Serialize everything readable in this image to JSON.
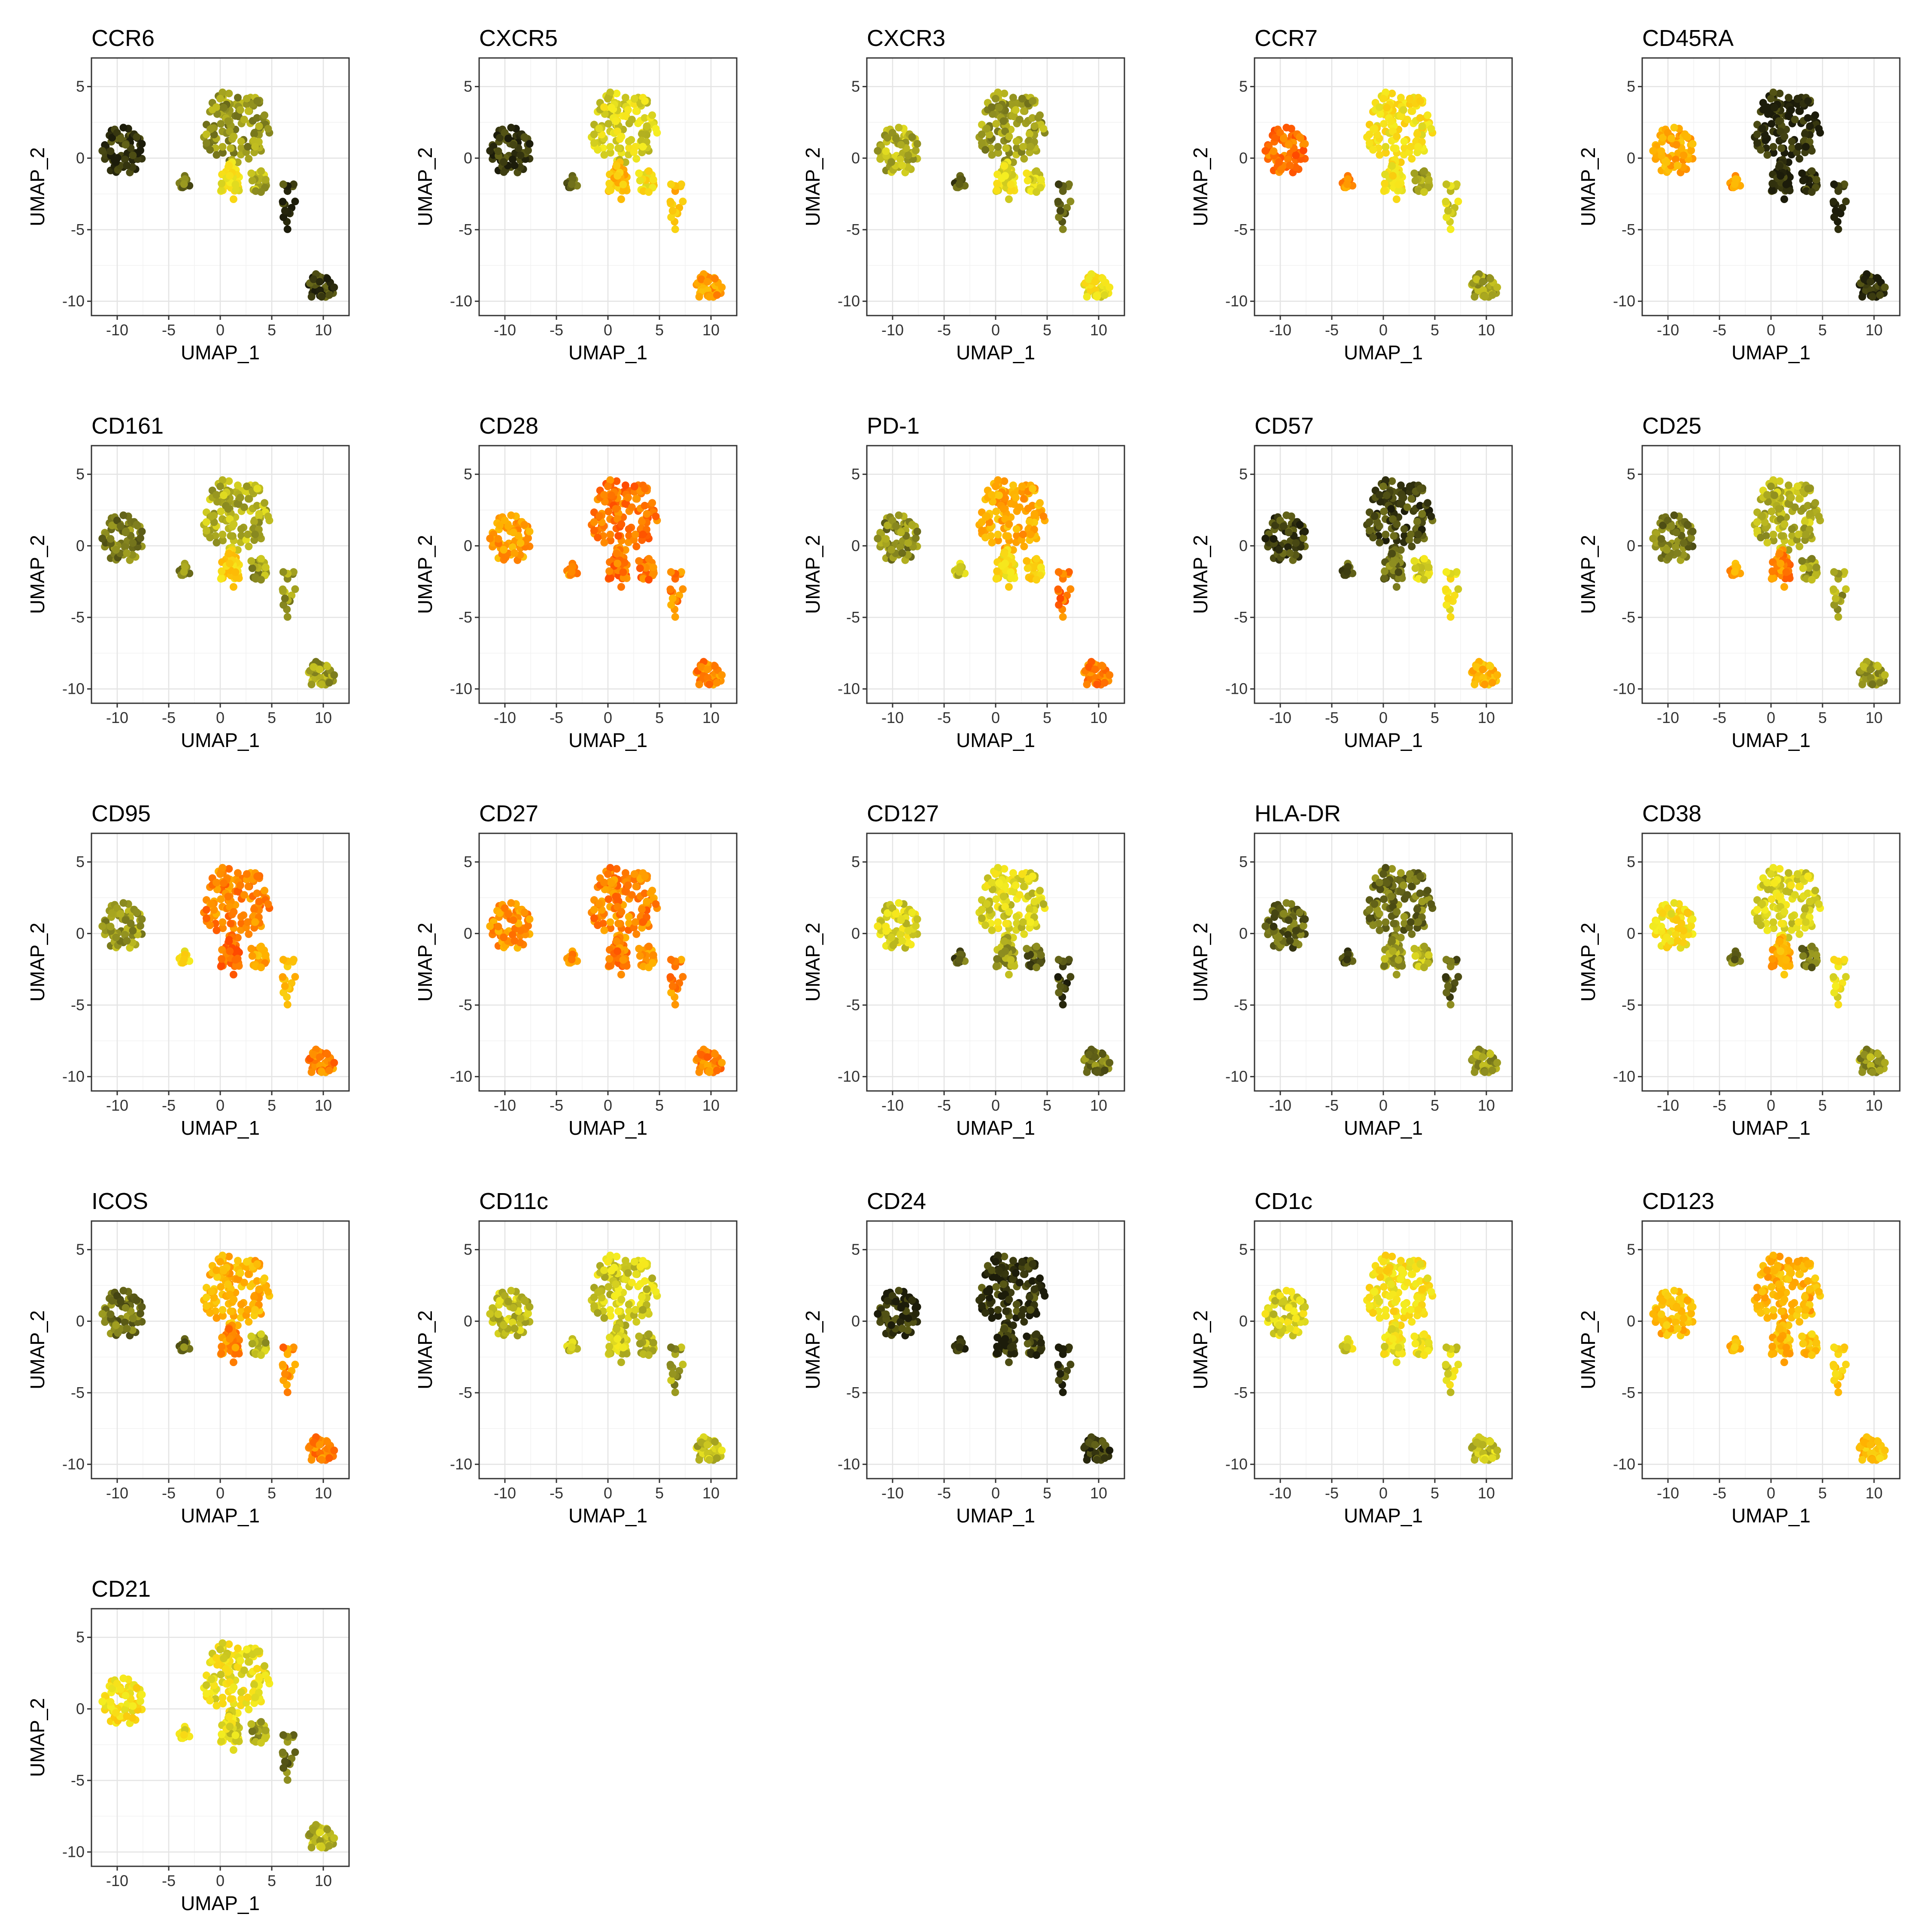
{
  "chart_data": {
    "type": "scatter",
    "layout": "faceted 5x5 grid",
    "shared_axes": {
      "xlabel": "UMAP_1",
      "ylabel": "UMAP_2",
      "xlim": [
        -12.5,
        12.5
      ],
      "ylim": [
        -11,
        7
      ],
      "xticks": [
        -10,
        -5,
        0,
        5,
        10
      ],
      "yticks": [
        5,
        0,
        -5,
        -10
      ],
      "grid": true
    },
    "color_scale": {
      "low": "#1c1c0a",
      "mid_low": "#8a8a20",
      "mid": "#f5ee20",
      "mid_high": "#ffb000",
      "high": "#ff4a00"
    },
    "panels": [
      {
        "title": "CCR6",
        "levels": {
          "left": 0.05,
          "mid_left": 0.2,
          "body": 0.28,
          "lower_left": 0.5,
          "lower_right": 0.35,
          "bridge": 0.05,
          "bottom": 0.08
        }
      },
      {
        "title": "CXCR5",
        "levels": {
          "left": 0.05,
          "mid_left": 0.15,
          "body": 0.45,
          "lower_left": 0.7,
          "lower_right": 0.55,
          "bridge": 0.7,
          "bottom": 0.78
        }
      },
      {
        "title": "CXCR3",
        "levels": {
          "left": 0.35,
          "mid_left": 0.15,
          "body": 0.3,
          "lower_left": 0.5,
          "lower_right": 0.45,
          "bridge": 0.15,
          "bottom": 0.5
        }
      },
      {
        "title": "CCR7",
        "levels": {
          "left": 0.9,
          "mid_left": 0.85,
          "body": 0.55,
          "lower_left": 0.55,
          "lower_right": 0.3,
          "bridge": 0.45,
          "bottom": 0.3
        }
      },
      {
        "title": "CD45RA",
        "levels": {
          "left": 0.75,
          "mid_left": 0.8,
          "body": 0.03,
          "lower_left": 0.05,
          "lower_right": 0.05,
          "bridge": 0.03,
          "bottom": 0.03
        }
      },
      {
        "title": "CD161",
        "levels": {
          "left": 0.22,
          "mid_left": 0.25,
          "body": 0.35,
          "lower_left": 0.62,
          "lower_right": 0.3,
          "bridge": 0.3,
          "bottom": 0.3
        }
      },
      {
        "title": "CD28",
        "levels": {
          "left": 0.78,
          "mid_left": 0.8,
          "body": 0.9,
          "lower_left": 0.92,
          "lower_right": 0.9,
          "bridge": 0.85,
          "bottom": 0.86
        }
      },
      {
        "title": "PD-1",
        "levels": {
          "left": 0.25,
          "mid_left": 0.4,
          "body": 0.75,
          "lower_left": 0.55,
          "lower_right": 0.6,
          "bridge": 0.9,
          "bottom": 0.88
        }
      },
      {
        "title": "CD57",
        "levels": {
          "left": 0.08,
          "mid_left": 0.12,
          "body": 0.1,
          "lower_left": 0.2,
          "lower_right": 0.45,
          "bridge": 0.5,
          "bottom": 0.7
        }
      },
      {
        "title": "CD25",
        "levels": {
          "left": 0.22,
          "mid_left": 0.78,
          "body": 0.35,
          "lower_left": 0.85,
          "lower_right": 0.3,
          "bridge": 0.3,
          "bottom": 0.3
        }
      },
      {
        "title": "CD95",
        "levels": {
          "left": 0.3,
          "mid_left": 0.55,
          "body": 0.85,
          "lower_left": 0.92,
          "lower_right": 0.75,
          "bridge": 0.7,
          "bottom": 0.86
        }
      },
      {
        "title": "CD27",
        "levels": {
          "left": 0.82,
          "mid_left": 0.85,
          "body": 0.85,
          "lower_left": 0.88,
          "lower_right": 0.82,
          "bridge": 0.85,
          "bottom": 0.86
        }
      },
      {
        "title": "CD127",
        "levels": {
          "left": 0.45,
          "mid_left": 0.15,
          "body": 0.45,
          "lower_left": 0.3,
          "lower_right": 0.15,
          "bridge": 0.1,
          "bottom": 0.2
        }
      },
      {
        "title": "HLA-DR",
        "levels": {
          "left": 0.15,
          "mid_left": 0.1,
          "body": 0.2,
          "lower_left": 0.3,
          "lower_right": 0.35,
          "bridge": 0.15,
          "bottom": 0.3
        }
      },
      {
        "title": "CD38",
        "levels": {
          "left": 0.55,
          "mid_left": 0.2,
          "body": 0.45,
          "lower_left": 0.75,
          "lower_right": 0.2,
          "bridge": 0.5,
          "bottom": 0.3
        }
      },
      {
        "title": "ICOS",
        "levels": {
          "left": 0.2,
          "mid_left": 0.2,
          "body": 0.72,
          "lower_left": 0.85,
          "lower_right": 0.35,
          "bridge": 0.85,
          "bottom": 0.86
        }
      },
      {
        "title": "CD11c",
        "levels": {
          "left": 0.38,
          "mid_left": 0.4,
          "body": 0.42,
          "lower_left": 0.42,
          "lower_right": 0.38,
          "bridge": 0.3,
          "bottom": 0.38
        }
      },
      {
        "title": "CD24",
        "levels": {
          "left": 0.05,
          "mid_left": 0.05,
          "body": 0.06,
          "lower_left": 0.05,
          "lower_right": 0.08,
          "bridge": 0.05,
          "bottom": 0.06
        }
      },
      {
        "title": "CD1c",
        "levels": {
          "left": 0.45,
          "mid_left": 0.45,
          "body": 0.55,
          "lower_left": 0.5,
          "lower_right": 0.5,
          "bridge": 0.45,
          "bottom": 0.4
        }
      },
      {
        "title": "CD123",
        "levels": {
          "left": 0.7,
          "mid_left": 0.7,
          "body": 0.72,
          "lower_left": 0.7,
          "lower_right": 0.68,
          "bridge": 0.62,
          "bottom": 0.68
        }
      },
      {
        "title": "CD21",
        "levels": {
          "left": 0.55,
          "mid_left": 0.5,
          "body": 0.5,
          "lower_left": 0.45,
          "lower_right": 0.3,
          "bridge": 0.2,
          "bottom": 0.35
        }
      }
    ]
  }
}
